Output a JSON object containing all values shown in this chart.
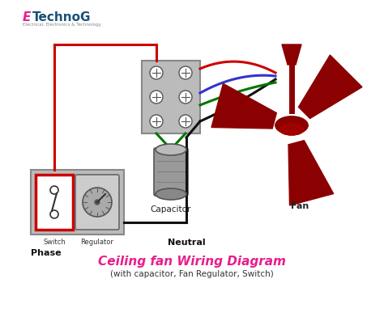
{
  "bg_color": "#ffffff",
  "title": "Ceiling fan Wiring Diagram",
  "subtitle": "(with capacitor, Fan Regulator, Switch)",
  "title_color": "#e91e8c",
  "subtitle_color": "#333333",
  "logo_color_e": "#e91e8c",
  "logo_color_rest": "#1a5276",
  "fan_color": "#8b0000",
  "wire_red": "#cc0000",
  "wire_black": "#111111",
  "wire_blue": "#3333cc",
  "wire_green": "#007700",
  "label_phase": "Phase",
  "label_switch": "Switch",
  "label_regulator": "Regulator",
  "label_neutral": "Neutral",
  "label_capacitor": "Capacitor",
  "label_fan": "Fan"
}
